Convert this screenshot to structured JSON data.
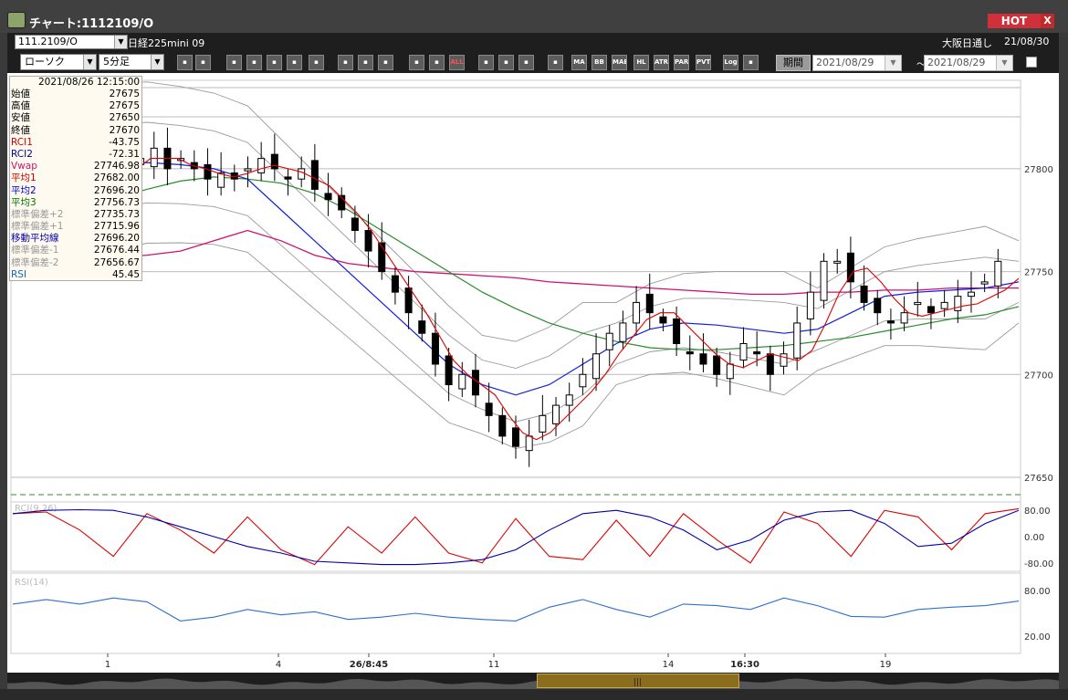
{
  "window": {
    "title": "チャート:1112109/O",
    "hot_label": "HOT",
    "close_label": "X"
  },
  "header": {
    "symbol_code": "111.2109/O",
    "symbol_name": "日経225mini 09",
    "market": "大阪日通し",
    "date": "21/08/30"
  },
  "toolbar": {
    "chart_type": "ローソク",
    "interval": "5分足",
    "buttons": [
      "zoom",
      "cross",
      "buy",
      "sell",
      "hl",
      "compare",
      "info",
      "draw",
      "pointer",
      "undo",
      "candle",
      "volume",
      "all",
      "settings",
      "color",
      "pie",
      "ichimoku",
      "ma",
      "bb",
      "mae",
      "hl2",
      "atr",
      "para",
      "pvt",
      "log",
      "export"
    ],
    "button_labels": {
      "all": "ALL",
      "ma": "MA",
      "bb": "BB",
      "mae": "MAE",
      "hl2": "HL",
      "atr": "ATR",
      "para": "PARA",
      "pvt": "PVT",
      "log": "Log"
    },
    "period_label": "期間",
    "date_from": "2021/08/29",
    "date_tilde": "～",
    "date_to": "2021/08/29"
  },
  "info_box": {
    "datetime": "2021/08/26  12:15:00",
    "rows": [
      {
        "label": "始値",
        "value": "27675",
        "color": "#000000"
      },
      {
        "label": "高値",
        "value": "27675",
        "color": "#000000"
      },
      {
        "label": "安値",
        "value": "27650",
        "color": "#000000"
      },
      {
        "label": "終値",
        "value": "27670",
        "color": "#000000"
      },
      {
        "label": "RCI1",
        "value": "-43.75",
        "color": "#cc0000"
      },
      {
        "label": "RCI2",
        "value": "-72.31",
        "color": "#00008b"
      },
      {
        "label": "Vwap",
        "value": "27746.98",
        "color": "#d01070"
      },
      {
        "label": "平均1",
        "value": "27682.00",
        "color": "#cc0000"
      },
      {
        "label": "平均2",
        "value": "27696.20",
        "color": "#0000cc"
      },
      {
        "label": "平均3",
        "value": "27756.73",
        "color": "#007000"
      },
      {
        "label": "標準偏差+2",
        "value": "27735.73",
        "color": "#999999"
      },
      {
        "label": "標準偏差+1",
        "value": "27715.96",
        "color": "#999999"
      },
      {
        "label": "移動平均線",
        "value": "27696.20",
        "color": "#0000aa"
      },
      {
        "label": "標準偏差-1",
        "value": "27676.44",
        "color": "#999999"
      },
      {
        "label": "標準偏差-2",
        "value": "27656.67",
        "color": "#999999"
      },
      {
        "label": "RSI",
        "value": "45.45",
        "color": "#1565c0"
      }
    ]
  },
  "price_axis": [
    "27800",
    "27750",
    "27700",
    "27650"
  ],
  "rci_panel": {
    "label": "RCI(9,26)",
    "ticks": [
      "80.00",
      "0.00",
      "-80.00"
    ]
  },
  "rsi_panel": {
    "label": "RSI(14)",
    "ticks": [
      "80.00",
      "20.00"
    ]
  },
  "x_axis": [
    "1",
    "4",
    "26/8:45",
    "11",
    "14",
    "16:30",
    "19"
  ],
  "colors": {
    "rci_fast": "#dd0000",
    "rci_slow": "#0000aa",
    "rsi": "#2f6fd0",
    "vwap": "#d01070",
    "ma_short": "#dd0000",
    "ma_mid": "#1020dd",
    "ma_long": "#2a8a2a",
    "bands": "#9a9a9a"
  },
  "chart_data": {
    "type": "line",
    "title": "日経225mini 09",
    "ylabel": "",
    "ylim": [
      27638,
      27843
    ],
    "x_ticks": [
      "1",
      "4",
      "26/8:45",
      "11",
      "14",
      "16:30",
      "19"
    ],
    "candles_close": [
      27790,
      27780,
      27795,
      27800,
      27805,
      27810,
      27800,
      27795,
      27800,
      27805,
      27810,
      27800,
      27805,
      27800,
      27795,
      27798,
      27795,
      27800,
      27805,
      27800,
      27795,
      27800,
      27790,
      27785,
      27780,
      27770,
      27760,
      27750,
      27740,
      27730,
      27720,
      27705,
      27695,
      27700,
      27690,
      27680,
      27670,
      27665,
      27670,
      27680,
      27685,
      27690,
      27700,
      27710,
      27720,
      27725,
      27735,
      27730,
      27725,
      27715,
      27710,
      27705,
      27700,
      27705,
      27715,
      27710,
      27700,
      27710,
      27725,
      27740,
      27755,
      27755,
      27745,
      27735,
      27730,
      27725,
      27730,
      27735,
      27730,
      27735,
      27738,
      27740,
      27745,
      27755
    ],
    "series": [
      {
        "name": "Vwap",
        "values": [
          27760,
          27759,
          27758,
          27757,
          27758,
          27760,
          27765,
          27770,
          27765,
          27758,
          27754,
          27752,
          27750,
          27749,
          27748,
          27747,
          27745,
          27744,
          27743,
          27742,
          27741,
          27740,
          27739,
          27739,
          27740,
          27740,
          27741,
          27741,
          27742,
          27742,
          27742
        ]
      },
      {
        "name": "平均2",
        "values": [
          27795,
          27797,
          27799,
          27801,
          27803,
          27802,
          27800,
          27795,
          27780,
          27765,
          27750,
          27735,
          27720,
          27705,
          27695,
          27690,
          27695,
          27705,
          27715,
          27722,
          27725,
          27724,
          27722,
          27720,
          27722,
          27730,
          27738,
          27740,
          27741,
          27742,
          27745
        ]
      },
      {
        "name": "平均3",
        "values": [
          27762,
          27770,
          27778,
          27785,
          27790,
          27794,
          27796,
          27795,
          27793,
          27788,
          27780,
          27770,
          27760,
          27750,
          27740,
          27732,
          27725,
          27720,
          27716,
          27713,
          27712,
          27712,
          27713,
          27714,
          27716,
          27718,
          27721,
          27724,
          27727,
          27729,
          27733
        ]
      },
      {
        "name": "RCI1",
        "values": [
          70,
          75,
          20,
          -60,
          70,
          20,
          -50,
          60,
          -40,
          -85,
          30,
          -50,
          60,
          -50,
          -80,
          55,
          -60,
          -70,
          50,
          -60,
          70,
          -10,
          -80,
          75,
          40,
          -60,
          80,
          60,
          -40,
          70,
          85
        ]
      },
      {
        "name": "RCI2",
        "values": [
          70,
          80,
          82,
          80,
          60,
          30,
          0,
          -30,
          -50,
          -75,
          -80,
          -85,
          -85,
          -80,
          -70,
          -40,
          20,
          70,
          80,
          60,
          20,
          -40,
          -10,
          50,
          75,
          80,
          40,
          -30,
          -20,
          40,
          80
        ]
      },
      {
        "name": "RSI",
        "values": [
          62,
          68,
          62,
          70,
          65,
          40,
          45,
          55,
          48,
          52,
          42,
          45,
          50,
          45,
          42,
          40,
          58,
          68,
          55,
          45,
          62,
          60,
          55,
          70,
          60,
          46,
          45,
          55,
          58,
          60,
          66
        ]
      }
    ]
  }
}
